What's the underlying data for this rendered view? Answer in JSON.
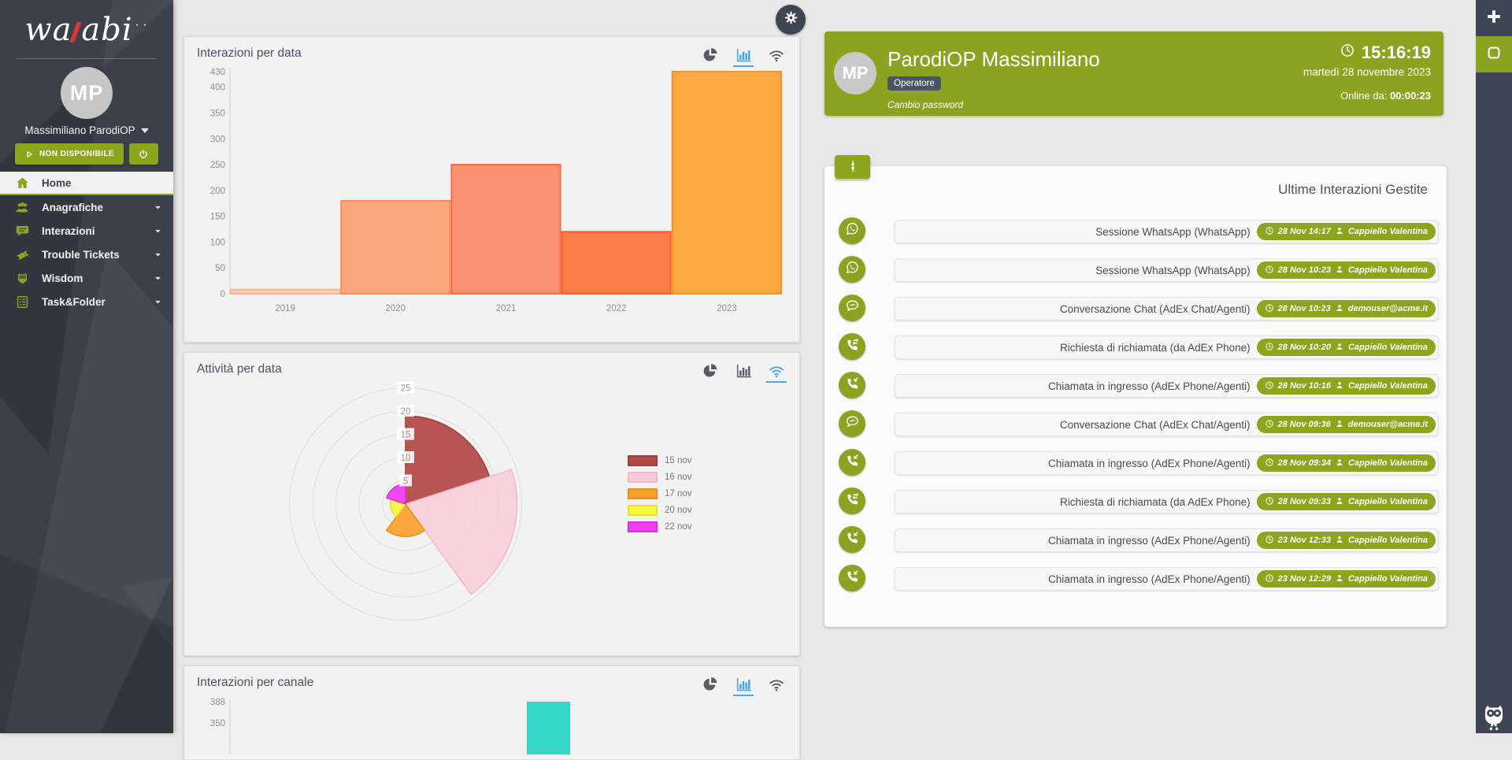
{
  "app": {
    "logo": {
      "left": "wa",
      "right": "abi"
    },
    "accent_green": "#8ca321",
    "dark": "#3a414b"
  },
  "sidebar": {
    "user": {
      "initials": "MP",
      "name": "Massimiliano ParodiOP"
    },
    "status_label": "NON DISPONIBILE",
    "menu": [
      {
        "label": "Home",
        "icon": "home-icon",
        "active": true,
        "expandable": false
      },
      {
        "label": "Anagrafiche",
        "icon": "users-icon",
        "active": false,
        "expandable": true
      },
      {
        "label": "Interazioni",
        "icon": "chat-icon",
        "active": false,
        "expandable": true
      },
      {
        "label": "Trouble Tickets",
        "icon": "ticket-icon",
        "active": false,
        "expandable": true
      },
      {
        "label": "Wisdom",
        "icon": "owl-icon",
        "active": false,
        "expandable": true
      },
      {
        "label": "Task&Folder",
        "icon": "tasks-icon",
        "active": false,
        "expandable": true
      }
    ]
  },
  "chart_data": [
    {
      "type": "bar",
      "title": "Interazioni per data",
      "categories": [
        "2019",
        "2020",
        "2021",
        "2022",
        "2023"
      ],
      "values": [
        8,
        180,
        250,
        120,
        430
      ],
      "yticks": [
        0,
        50,
        100,
        150,
        200,
        250,
        300,
        350,
        400,
        430
      ],
      "ylim": [
        0,
        430
      ],
      "grid": false,
      "bar_fills": [
        "#fcd2b8",
        "#fba87e",
        "#fb9173",
        "#fa7d48",
        "#fba93f"
      ],
      "bar_borders": [
        "#f9b68b",
        "#fa8c55",
        "#f96a4b",
        "#f96030",
        "#f79222"
      ],
      "active_view": "bar",
      "views": [
        "pie-chart-icon",
        "bar-chart-icon",
        "polar-chart-icon"
      ]
    },
    {
      "type": "polarArea",
      "title": "Attività per data",
      "categories": [
        "15 nov",
        "16 nov",
        "17 nov",
        "20 nov",
        "22 nov"
      ],
      "values": [
        19,
        24,
        7,
        3.3,
        4.3
      ],
      "rticks": [
        5,
        10,
        15,
        20,
        25
      ],
      "rlim": [
        0,
        25
      ],
      "fills": [
        "rgba(177,72,68,0.92)",
        "rgba(249,203,214,0.8)",
        "rgba(248,162,46,0.92)",
        "rgba(246,246,60,0.95)",
        "rgba(242,62,242,0.95)"
      ],
      "solid_colors": [
        "#b24744",
        "#f9cbd6",
        "#f8a22e",
        "#f6f63c",
        "#f23ef2"
      ],
      "border_colors": [
        "#9e3d39",
        "#f3b7c6",
        "#ee8f1d",
        "#e2e22e",
        "#dd2bdd"
      ],
      "legend_position": "right",
      "active_view": "polar",
      "views": [
        "pie-chart-icon",
        "bar-chart-icon",
        "polar-chart-icon"
      ]
    },
    {
      "type": "bar",
      "title": "Interazioni per canale",
      "partial": true,
      "visible_yticks": [
        388,
        350
      ],
      "visible_bars": [
        {
          "value": 388,
          "fill": "#35d7c8"
        }
      ],
      "active_view": "bar",
      "views": [
        "pie-chart-icon",
        "bar-chart-icon",
        "polar-chart-icon"
      ]
    }
  ],
  "operator": {
    "initials": "MP",
    "name": "ParodiOP Massimiliano",
    "role": "Operatore",
    "change_password": "Cambio password",
    "time": "15:16:19",
    "date": "martedì 28 novembre 2023",
    "online_label": "Online da:",
    "online_value": "00:00:23"
  },
  "interactions": {
    "title": "Ultime Interazioni Gestite",
    "rows": [
      {
        "icon": "whatsapp-icon",
        "label": "Sessione WhatsApp (WhatsApp)",
        "time": "28 Nov 14:17",
        "agent": "Cappiello Valentina"
      },
      {
        "icon": "whatsapp-icon",
        "label": "Sessione WhatsApp (WhatsApp)",
        "time": "28 Nov 10:23",
        "agent": "Cappiello Valentina"
      },
      {
        "icon": "chat-bubble-icon",
        "label": "Conversazione Chat (AdEx Chat/Agenti)",
        "time": "28 Nov 10:23",
        "agent": "demouser@acme.it"
      },
      {
        "icon": "callback-icon",
        "label": "Richiesta di richiamata (da AdEx Phone)",
        "time": "28 Nov 10:20",
        "agent": "Cappiello Valentina"
      },
      {
        "icon": "phone-incoming-icon",
        "label": "Chiamata in ingresso (AdEx Phone/Agenti)",
        "time": "28 Nov 10:16",
        "agent": "Cappiello Valentina"
      },
      {
        "icon": "chat-bubble-icon",
        "label": "Conversazione Chat (AdEx Chat/Agenti)",
        "time": "28 Nov 09:36",
        "agent": "demouser@acme.it"
      },
      {
        "icon": "phone-incoming-icon",
        "label": "Chiamata in ingresso (AdEx Phone/Agenti)",
        "time": "28 Nov 09:34",
        "agent": "Cappiello Valentina"
      },
      {
        "icon": "callback-icon",
        "label": "Richiesta di richiamata (da AdEx Phone)",
        "time": "28 Nov 09:33",
        "agent": "Cappiello Valentina"
      },
      {
        "icon": "phone-incoming-icon",
        "label": "Chiamata in ingresso (AdEx Phone/Agenti)",
        "time": "23 Nov 12:33",
        "agent": "Cappiello Valentina"
      },
      {
        "icon": "phone-incoming-icon",
        "label": "Chiamata in ingresso (AdEx Phone/Agenti)",
        "time": "23 Nov 12:29",
        "agent": "Cappiello Valentina"
      }
    ]
  }
}
